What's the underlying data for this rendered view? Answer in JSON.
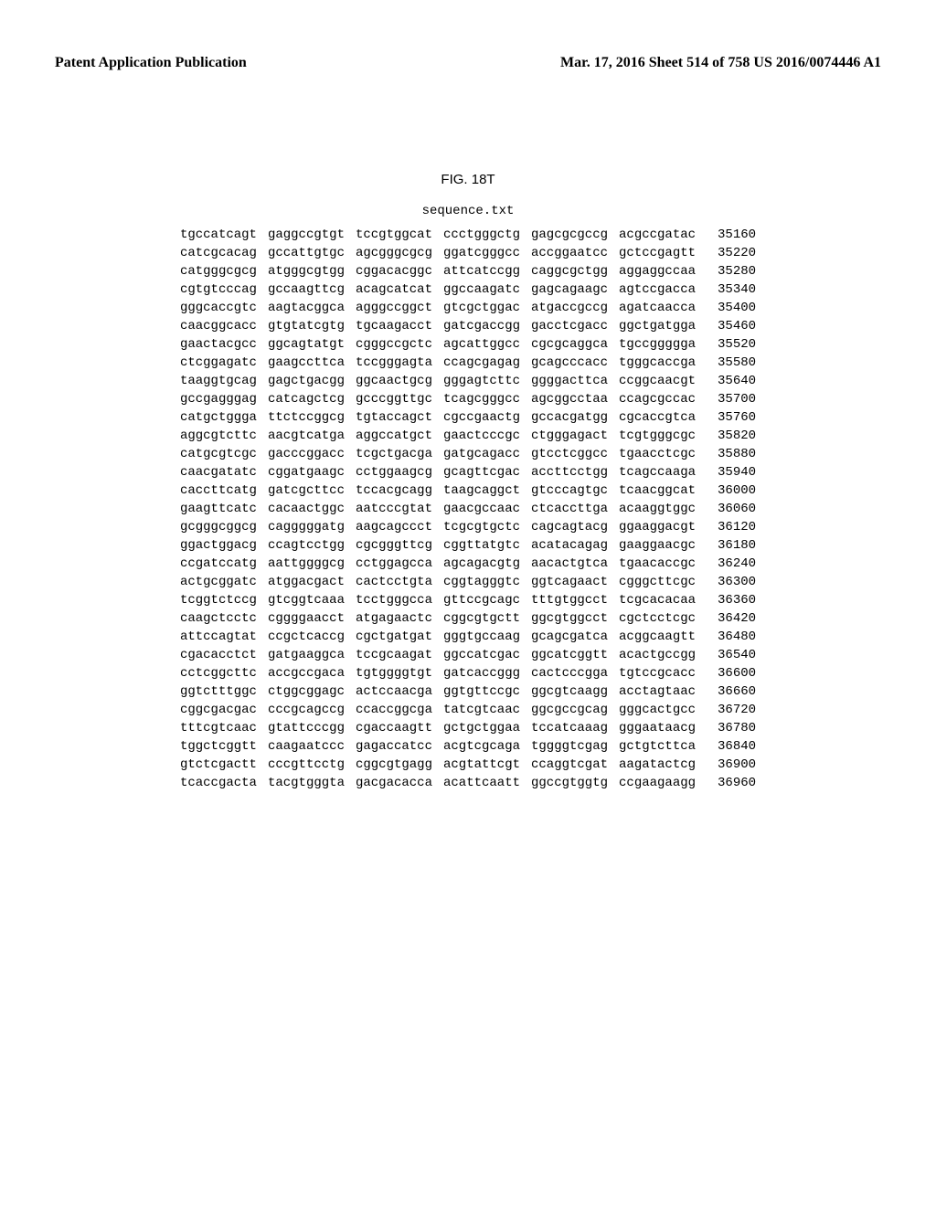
{
  "header": {
    "left": "Patent Application Publication",
    "right": "Mar. 17, 2016  Sheet 514 of 758   US 2016/0074446 A1"
  },
  "figure_label": "FIG. 18T",
  "sequence_title": "sequence.txt",
  "rows": [
    {
      "b": [
        "tgccatcagt",
        "gaggccgtgt",
        "tccgtggcat",
        "ccctgggctg",
        "gagcgcgccg",
        "acgccgatac"
      ],
      "p": "35160"
    },
    {
      "b": [
        "catcgcacag",
        "gccattgtgc",
        "agcgggcgcg",
        "ggatcgggcc",
        "accggaatcc",
        "gctccgagtt"
      ],
      "p": "35220"
    },
    {
      "b": [
        "catgggcgcg",
        "atgggcgtgg",
        "cggacacggc",
        "attcatccgg",
        "caggcgctgg",
        "aggaggccaa"
      ],
      "p": "35280"
    },
    {
      "b": [
        "cgtgtcccag",
        "gccaagttcg",
        "acagcatcat",
        "ggccaagatc",
        "gagcagaagc",
        "agtccgacca"
      ],
      "p": "35340"
    },
    {
      "b": [
        "gggcaccgtc",
        "aagtacggca",
        "agggccggct",
        "gtcgctggac",
        "atgaccgccg",
        "agatcaacca"
      ],
      "p": "35400"
    },
    {
      "b": [
        "caacggcacc",
        "gtgtatcgtg",
        "tgcaagacct",
        "gatcgaccgg",
        "gacctcgacc",
        "ggctgatgga"
      ],
      "p": "35460"
    },
    {
      "b": [
        "gaactacgcc",
        "ggcagtatgt",
        "cgggccgctc",
        "agcattggcc",
        "cgcgcaggca",
        "tgccgggggа"
      ],
      "p": "35520"
    },
    {
      "b": [
        "ctcggagatc",
        "gaagccttca",
        "tccgggagta",
        "ccagcgagag",
        "gcagcccacc",
        "tgggcaccga"
      ],
      "p": "35580"
    },
    {
      "b": [
        "taaggtgcag",
        "gagctgacgg",
        "ggcaactgcg",
        "gggagtcttc",
        "ggggacttca",
        "ccggcaacgt"
      ],
      "p": "35640"
    },
    {
      "b": [
        "gccgagggag",
        "catcagctcg",
        "gcccggttgc",
        "tcagcgggcc",
        "agcggcctaa",
        "ccagcgccac"
      ],
      "p": "35700"
    },
    {
      "b": [
        "catgctggga",
        "ttctccggcg",
        "tgtaccagct",
        "cgccgaactg",
        "gccacgatgg",
        "cgcaccgtca"
      ],
      "p": "35760"
    },
    {
      "b": [
        "aggcgtcttc",
        "aacgtcatga",
        "aggccatgct",
        "gaactcccgc",
        "ctgggagact",
        "tcgtgggcgc"
      ],
      "p": "35820"
    },
    {
      "b": [
        "catgcgtcgc",
        "gacccggacc",
        "tcgctgacga",
        "gatgcagacc",
        "gtcctcggcc",
        "tgaacctcgc"
      ],
      "p": "35880"
    },
    {
      "b": [
        "caacgatatc",
        "cggatgaagc",
        "cctggaagcg",
        "gcagttcgac",
        "accttcctgg",
        "tcagccaaga"
      ],
      "p": "35940"
    },
    {
      "b": [
        "caccttcatg",
        "gatcgcttcc",
        "tccacgcagg",
        "taagcaggct",
        "gtcccagtgc",
        "tcaacggcat"
      ],
      "p": "36000"
    },
    {
      "b": [
        "gaagttcatc",
        "cacaactggc",
        "aatcccgtat",
        "gaacgccaac",
        "ctcaccttga",
        "acaaggtggc"
      ],
      "p": "36060"
    },
    {
      "b": [
        "gcgggcggcg",
        "cagggggatg",
        "aagcagccct",
        "tcgcgtgctc",
        "cagcagtacg",
        "ggaaggacgt"
      ],
      "p": "36120"
    },
    {
      "b": [
        "ggactggacg",
        "ccagtcctgg",
        "cgcgggttcg",
        "cggttatgtc",
        "acatacagag",
        "gaaggaacgc"
      ],
      "p": "36180"
    },
    {
      "b": [
        "ccgatccatg",
        "aattggggcg",
        "cctggagcca",
        "agcagacgtg",
        "aacactgtca",
        "tgaacaccgc"
      ],
      "p": "36240"
    },
    {
      "b": [
        "actgcggatc",
        "atggacgact",
        "cactcctgta",
        "cggtagggtc",
        "ggtcagaact",
        "cgggcttcgc"
      ],
      "p": "36300"
    },
    {
      "b": [
        "tcggtctccg",
        "gtcggtcaaa",
        "tcctgggcca",
        "gttccgcagc",
        "tttgtggcct",
        "tcgcacacaa"
      ],
      "p": "36360"
    },
    {
      "b": [
        "caagctcctc",
        "cggggaacct",
        "atgagaactc",
        "cggcgtgctt",
        "ggcgtggcct",
        "cgctcctcgc"
      ],
      "p": "36420"
    },
    {
      "b": [
        "attccagtat",
        "ccgctcaccg",
        "cgctgatgat",
        "gggtgccaag",
        "gcagcgatca",
        "acggcaagtt"
      ],
      "p": "36480"
    },
    {
      "b": [
        "cgacacctct",
        "gatgaaggca",
        "tccgcaagat",
        "ggccatcgac",
        "ggcatcggtt",
        "acactgccgg"
      ],
      "p": "36540"
    },
    {
      "b": [
        "cctcggcttc",
        "accgccgaca",
        "tgtggggtgt",
        "gatcaccggg",
        "cactcccgga",
        "tgtccgcacc"
      ],
      "p": "36600"
    },
    {
      "b": [
        "ggtctttggc",
        "ctggcggagc",
        "actccaacga",
        "ggtgttccgc",
        "ggcgtcaagg",
        "acctagtaac"
      ],
      "p": "36660"
    },
    {
      "b": [
        "cggcgacgac",
        "cccgcagccg",
        "ccaccggcga",
        "tatcgtcaac",
        "ggcgccgcag",
        "gggcactgcc"
      ],
      "p": "36720"
    },
    {
      "b": [
        "tttcgtcaac",
        "gtattcccgg",
        "cgaccaagtt",
        "gctgctggaa",
        "tccatcaaag",
        "gggaataacg"
      ],
      "p": "36780"
    },
    {
      "b": [
        "tggctcggtt",
        "caagaatccc",
        "gagaccatcc",
        "acgtcgcaga",
        "tggggtcgag",
        "gctgtcttca"
      ],
      "p": "36840"
    },
    {
      "b": [
        "gtctcgactt",
        "cccgttcctg",
        "cggcgtgagg",
        "acgtattcgt",
        "ccaggtcgat",
        "aagatactcg"
      ],
      "p": "36900"
    },
    {
      "b": [
        "tcaccgacta",
        "tacgtgggta",
        "gacgacacca",
        "acattcaatt",
        "ggccgtggtg",
        "ccgaagaagg"
      ],
      "p": "36960"
    }
  ]
}
